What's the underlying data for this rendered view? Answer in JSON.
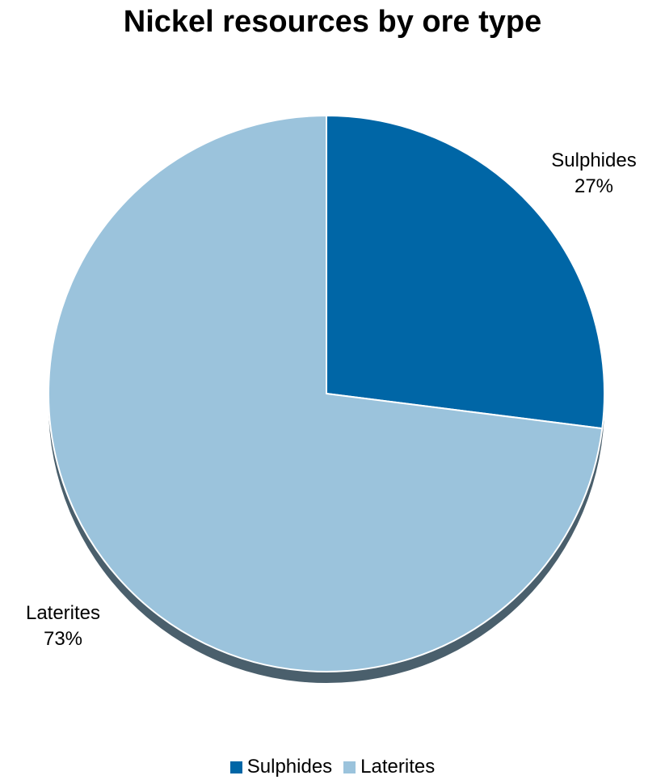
{
  "chart_data": {
    "type": "pie",
    "title": "Nickel resources by ore type",
    "categories": [
      "Sulphides",
      "Laterites"
    ],
    "values": [
      27,
      73
    ],
    "value_labels": [
      "27%",
      "73%"
    ],
    "colors": [
      "#0066A6",
      "#9BC3DC"
    ],
    "shadow_color": "#4A5F6C",
    "legend_position": "bottom",
    "start_angle_deg": 0,
    "direction": "clockwise"
  }
}
